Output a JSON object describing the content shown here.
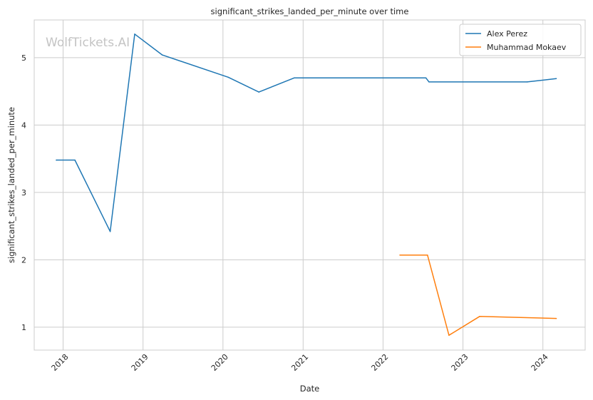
{
  "chart_data": {
    "type": "line",
    "title": "significant_strikes_landed_per_minute over time",
    "xlabel": "Date",
    "ylabel": "significant_strikes_landed_per_minute",
    "watermark": "WolfTickets.AI",
    "x_ticks": [
      "2018",
      "2019",
      "2020",
      "2021",
      "2022",
      "2023",
      "2024"
    ],
    "y_ticks": [
      1,
      2,
      3,
      4,
      5
    ],
    "xlim": [
      "2017-08-22",
      "2024-07-12"
    ],
    "ylim": [
      0.66,
      5.56
    ],
    "grid": true,
    "legend_position": "top-right",
    "series": [
      {
        "name": "Alex Perez",
        "color": "#1f77b4",
        "points": [
          [
            "2017-12-01",
            3.48
          ],
          [
            "2018-02-24",
            3.48
          ],
          [
            "2018-08-04",
            2.42
          ],
          [
            "2018-11-24",
            5.35
          ],
          [
            "2019-03-30",
            5.04
          ],
          [
            "2020-01-25",
            4.71
          ],
          [
            "2020-06-13",
            4.49
          ],
          [
            "2020-11-21",
            4.7
          ],
          [
            "2022-07-16",
            4.7
          ],
          [
            "2022-07-30",
            4.64
          ],
          [
            "2023-10-21",
            4.64
          ],
          [
            "2024-03-02",
            4.69
          ]
        ]
      },
      {
        "name": "Muhammad Mokaev",
        "color": "#ff7f0e",
        "points": [
          [
            "2022-03-19",
            2.07
          ],
          [
            "2022-07-23",
            2.07
          ],
          [
            "2022-10-29",
            0.88
          ],
          [
            "2023-03-18",
            1.16
          ],
          [
            "2024-03-02",
            1.13
          ]
        ]
      }
    ]
  }
}
